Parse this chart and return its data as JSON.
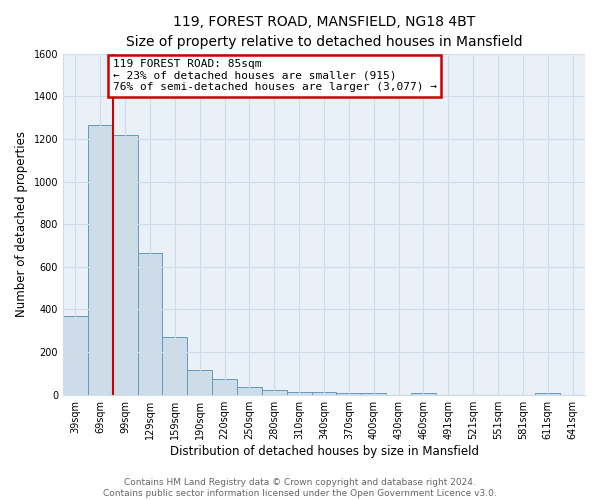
{
  "title": "119, FOREST ROAD, MANSFIELD, NG18 4BT",
  "subtitle": "Size of property relative to detached houses in Mansfield",
  "xlabel": "Distribution of detached houses by size in Mansfield",
  "ylabel": "Number of detached properties",
  "categories": [
    "39sqm",
    "69sqm",
    "99sqm",
    "129sqm",
    "159sqm",
    "190sqm",
    "220sqm",
    "250sqm",
    "280sqm",
    "310sqm",
    "340sqm",
    "370sqm",
    "400sqm",
    "430sqm",
    "460sqm",
    "491sqm",
    "521sqm",
    "551sqm",
    "581sqm",
    "611sqm",
    "641sqm"
  ],
  "values": [
    370,
    1265,
    1220,
    665,
    270,
    115,
    75,
    38,
    20,
    15,
    12,
    10,
    10,
    0,
    10,
    0,
    0,
    0,
    0,
    10,
    0
  ],
  "bar_color": "#ccdce8",
  "bar_edge_color": "#6699bb",
  "red_line_x": 1.5,
  "annotation_line1": "119 FOREST ROAD: 85sqm",
  "annotation_line2": "← 23% of detached houses are smaller (915)",
  "annotation_line3": "76% of semi-detached houses are larger (3,077) →",
  "annotation_box_color": "#ffffff",
  "annotation_box_edge": "#cc0000",
  "ylim": [
    0,
    1600
  ],
  "yticks": [
    0,
    200,
    400,
    600,
    800,
    1000,
    1200,
    1400,
    1600
  ],
  "footer1": "Contains HM Land Registry data © Crown copyright and database right 2024.",
  "footer2": "Contains public sector information licensed under the Open Government Licence v3.0.",
  "plot_bg_color": "#eaf0f8",
  "fig_bg_color": "#ffffff",
  "grid_color": "#d0dce8",
  "title_fontsize": 10,
  "subtitle_fontsize": 9,
  "axis_label_fontsize": 8.5,
  "tick_fontsize": 7,
  "annotation_fontsize": 8,
  "footer_fontsize": 6.5
}
